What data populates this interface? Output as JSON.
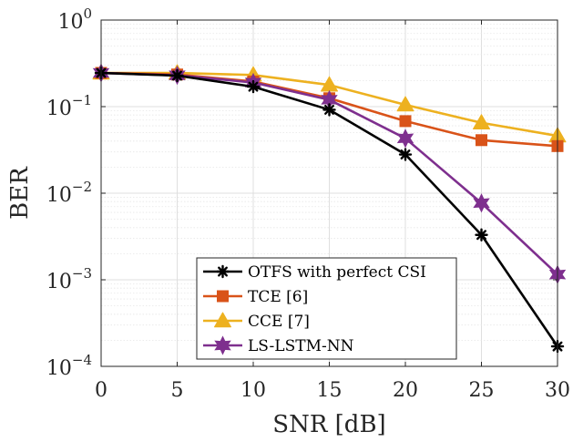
{
  "chart_data": {
    "type": "line",
    "xlabel": "SNR [dB]",
    "ylabel": "BER",
    "x_ticks": [
      "0",
      "5",
      "10",
      "15",
      "20",
      "25",
      "30"
    ],
    "y_ticks": [
      {
        "base": "10",
        "exp": "0"
      },
      {
        "base": "10",
        "exp": "−1"
      },
      {
        "base": "10",
        "exp": "−2"
      },
      {
        "base": "10",
        "exp": "−3"
      },
      {
        "base": "10",
        "exp": "−4"
      }
    ],
    "x": [
      0,
      5,
      10,
      15,
      20,
      25,
      30
    ],
    "xlim": [
      0,
      30
    ],
    "ylim": [
      0.0001,
      1
    ],
    "yscale": "log",
    "grid": true,
    "legend_position": "bottom-center",
    "series": [
      {
        "name": "OTFS with perfect CSI",
        "color": "#000000",
        "marker": "asterisk",
        "values": [
          0.245,
          0.228,
          0.17,
          0.092,
          0.028,
          0.0033,
          0.00017
        ]
      },
      {
        "name": "TCE [6]",
        "color": "#D95319",
        "marker": "square",
        "values": [
          0.245,
          0.235,
          0.195,
          0.125,
          0.068,
          0.041,
          0.035
        ]
      },
      {
        "name": "CCE [7]",
        "color": "#EDB120",
        "marker": "triangle",
        "values": [
          0.245,
          0.245,
          0.232,
          0.178,
          0.105,
          0.065,
          0.046
        ]
      },
      {
        "name": "LS-LSTM-NN",
        "color": "#7E2F8E",
        "marker": "hexagram",
        "values": [
          0.245,
          0.23,
          0.19,
          0.12,
          0.043,
          0.0077,
          0.00115
        ]
      }
    ]
  }
}
